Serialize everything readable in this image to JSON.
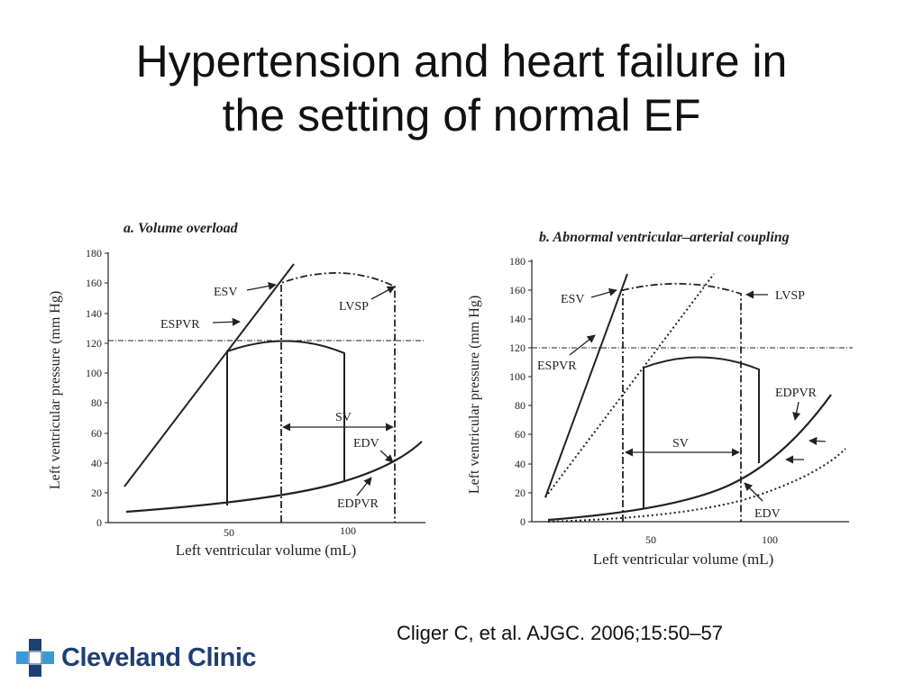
{
  "slide": {
    "title_line1": "Hypertension and heart failure in",
    "title_line2": "the setting of normal EF",
    "citation": "Cliger C, et al. AJGC. 2006;15:50–57",
    "logo_text": "Cleveland Clinic"
  },
  "panels": [
    {
      "title": "a. Volume overload",
      "ylabel": "Left ventricular pressure (mm Hg)",
      "xlabel": "Left ventricular volume (mL)",
      "y_ticks": [
        "0",
        "20",
        "40",
        "60",
        "80",
        "100",
        "120",
        "140",
        "160",
        "180"
      ],
      "x_ticks": [
        "50",
        "100"
      ],
      "labels": {
        "esv": "ESV",
        "espvr": "ESPVR",
        "lvsp": "LVSP",
        "sv": "SV",
        "edv": "EDV",
        "edpvr": "EDPVR"
      }
    },
    {
      "title": "b. Abnormal ventricular–arterial coupling",
      "ylabel": "Left ventricular pressure (mm Hg)",
      "xlabel": "Left ventricular volume (mL)",
      "y_ticks": [
        "0",
        "20",
        "40",
        "60",
        "80",
        "100",
        "120",
        "140",
        "160",
        "180"
      ],
      "x_ticks": [
        "50",
        "100"
      ],
      "labels": {
        "esv": "ESV",
        "espvr": "ESPVR",
        "lvsp": "LVSP",
        "sv": "SV",
        "edv": "EDV",
        "edpvr": "EDPVR"
      }
    }
  ],
  "colors": {
    "logo_blue": "#1f3f73",
    "logo_cyan": "#3a9ad9",
    "ink": "#222222"
  }
}
